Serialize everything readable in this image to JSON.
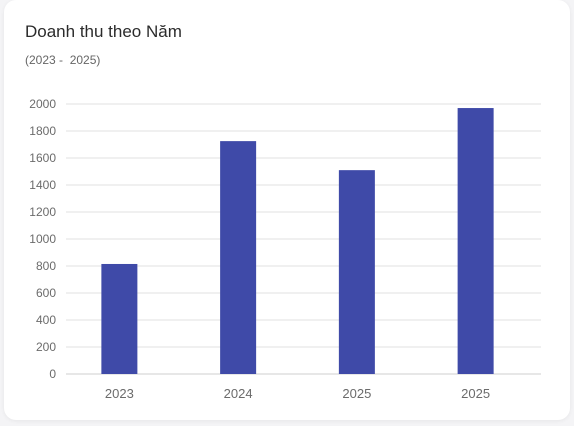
{
  "header": {
    "title": "Doanh thu theo Năm",
    "subtitle": "(2023 -  2025)"
  },
  "colors": {
    "bar": "#3f4aa8",
    "grid": "#e2e2e2",
    "axis": "#cfcfcf"
  },
  "chart_data": {
    "type": "bar",
    "title": "Doanh thu theo Năm",
    "subtitle": "(2023 -  2025)",
    "categories": [
      "2023",
      "2024",
      "2025",
      "2025"
    ],
    "values": [
      815,
      1725,
      1510,
      1970
    ],
    "ylim": [
      0,
      2000
    ],
    "yticks": [
      0,
      200,
      400,
      600,
      800,
      1000,
      1200,
      1400,
      1600,
      1800,
      2000
    ],
    "grid": true,
    "legend": "none"
  }
}
